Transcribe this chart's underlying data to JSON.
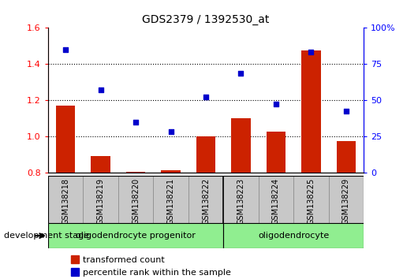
{
  "title": "GDS2379 / 1392530_at",
  "samples": [
    "GSM138218",
    "GSM138219",
    "GSM138220",
    "GSM138221",
    "GSM138222",
    "GSM138223",
    "GSM138224",
    "GSM138225",
    "GSM138229"
  ],
  "transformed_count": [
    1.17,
    0.895,
    0.805,
    0.815,
    1.0,
    1.1,
    1.03,
    1.475,
    0.975
  ],
  "percentile_rank_y": [
    1.48,
    1.26,
    1.08,
    1.03,
    1.22,
    1.35,
    1.18,
    1.465,
    1.14
  ],
  "ylim_left": [
    0.8,
    1.6
  ],
  "yticks_left": [
    0.8,
    1.0,
    1.2,
    1.4,
    1.6
  ],
  "yticks_right": [
    0,
    25,
    50,
    75,
    100
  ],
  "hlines": [
    1.0,
    1.2,
    1.4
  ],
  "group1_count": 5,
  "group2_count": 4,
  "group1_label": "oligodendrocyte progenitor",
  "group2_label": "oligodendrocyte",
  "group_color": "#90EE90",
  "bar_color": "#CC2200",
  "scatter_color": "#0000CC",
  "tick_area_color": "#C8C8C8",
  "xlabel_dev_stage": "development stage",
  "legend_bar": "transformed count",
  "legend_scatter": "percentile rank within the sample",
  "bar_width": 0.55,
  "right_axis_label_100": "100%",
  "right_axis_labels": [
    "0",
    "25",
    "50",
    "75",
    "100%"
  ]
}
